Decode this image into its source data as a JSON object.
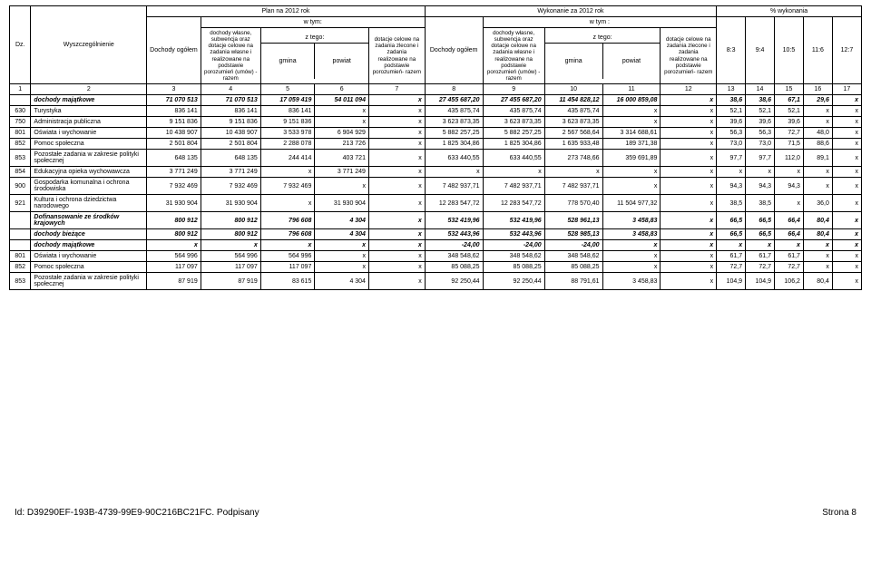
{
  "header": {
    "plan": "Plan na 2012 rok",
    "wtym": "w  tym:",
    "wykonanie": "Wykonanie  za  2012 rok",
    "wtym2": "w tym :",
    "pctWyk": "%  wykonania",
    "dz": "Dz.",
    "wysz": "Wyszczególnienie",
    "dochOg": "Dochody ogółem",
    "dochWlasne": "dochody  własne, subwencja  oraz dotacje celowe na zadania własne i realizowane  na podstawie porozumień (umów) - razem",
    "ztego": "z tego:",
    "gmina": "gmina",
    "powiat": "powiat",
    "dotacje": "dotacje celowe na zadania zlecone i zadania realizowane  na podstawie porozumień- razem",
    "dochOg2": "Dochody ogółem",
    "c83": "8:3",
    "c94": "9:4",
    "c105": "10:5",
    "c116": "11:6",
    "c127": "12:7"
  },
  "numRow": [
    "1",
    "2",
    "3",
    "4",
    "5",
    "6",
    "7",
    "8",
    "9",
    "10",
    "11",
    "12",
    "13",
    "14",
    "15",
    "16",
    "17"
  ],
  "rows": [
    {
      "style": "bold ital",
      "cells": [
        "",
        "dochody majątkowe",
        "71 070 513",
        "71 070 513",
        "17 059 419",
        "54 011 094",
        "x",
        "27 455 687,20",
        "27 455 687,20",
        "11 454 828,12",
        "16 000 859,08",
        "x",
        "38,6",
        "38,6",
        "67,1",
        "29,6",
        "x"
      ]
    },
    {
      "cells": [
        "630",
        "Turystyka",
        "836 141",
        "836 141",
        "836 141",
        "x",
        "x",
        "435 875,74",
        "435 875,74",
        "435 875,74",
        "x",
        "x",
        "52,1",
        "52,1",
        "52,1",
        "x",
        "x"
      ]
    },
    {
      "cells": [
        "750",
        "Administracja  publiczna",
        "9 151 836",
        "9 151 836",
        "9 151 836",
        "x",
        "x",
        "3 623 873,35",
        "3 623 873,35",
        "3 623 873,35",
        "x",
        "x",
        "39,6",
        "39,6",
        "39,6",
        "x",
        "x"
      ]
    },
    {
      "cells": [
        "801",
        "Oświata i wychowanie",
        "10 438 907",
        "10 438 907",
        "3 533 978",
        "6 904 929",
        "x",
        "5 882 257,25",
        "5 882 257,25",
        "2 567 568,64",
        "3 314 688,61",
        "x",
        "56,3",
        "56,3",
        "72,7",
        "48,0",
        "x"
      ]
    },
    {
      "cells": [
        "852",
        "Pomoc społeczna",
        "2 501 804",
        "2 501 804",
        "2 288 078",
        "213 726",
        "x",
        "1 825 304,86",
        "1 825 304,86",
        "1 635 933,48",
        "189 371,38",
        "x",
        "73,0",
        "73,0",
        "71,5",
        "88,6",
        "x"
      ]
    },
    {
      "cells": [
        "853",
        "Pozostałe  zadania w zakresie polityki społecznej",
        "648 135",
        "648 135",
        "244 414",
        "403 721",
        "x",
        "633 440,55",
        "633 440,55",
        "273 748,66",
        "359 691,89",
        "x",
        "97,7",
        "97,7",
        "112,0",
        "89,1",
        "x"
      ]
    },
    {
      "cells": [
        "854",
        "Edukacyjna  opieka wychowawcza",
        "3 771 249",
        "3 771 249",
        "x",
        "3 771 249",
        "x",
        "x",
        "x",
        "x",
        "x",
        "x",
        "x",
        "x",
        "x",
        "x",
        "x"
      ]
    },
    {
      "cells": [
        "900",
        "Gospodarka  komunalna i ochrona środowiska",
        "7 932 469",
        "7 932 469",
        "7 932 469",
        "x",
        "x",
        "7 482 937,71",
        "7 482 937,71",
        "7 482 937,71",
        "x",
        "x",
        "94,3",
        "94,3",
        "94,3",
        "x",
        "x"
      ]
    },
    {
      "cells": [
        "921",
        "Kultura i ochrona  dziedzictwa narodowego",
        "31 930 904",
        "31 930 904",
        "x",
        "31 930 904",
        "x",
        "12 283 547,72",
        "12 283 547,72",
        "778 570,40",
        "11 504 977,32",
        "x",
        "38,5",
        "38,5",
        "x",
        "36,0",
        "x"
      ]
    },
    {
      "style": "bold ital",
      "cells": [
        "",
        "Dofinansowanie  ze środków krajowych",
        "800 912",
        "800 912",
        "796 608",
        "4 304",
        "x",
        "532 419,96",
        "532 419,96",
        "528 961,13",
        "3 458,83",
        "x",
        "66,5",
        "66,5",
        "66,4",
        "80,4",
        "x"
      ]
    },
    {
      "style": "bold ital",
      "cells": [
        "",
        "dochody  bieżące",
        "800 912",
        "800 912",
        "796 608",
        "4 304",
        "x",
        "532 443,96",
        "532 443,96",
        "528 985,13",
        "3 458,83",
        "x",
        "66,5",
        "66,5",
        "66,4",
        "80,4",
        "x"
      ]
    },
    {
      "style": "bold ital",
      "cells": [
        "",
        "dochody  majątkowe",
        "x",
        "x",
        "x",
        "x",
        "x",
        "-24,00",
        "-24,00",
        "-24,00",
        "x",
        "x",
        "x",
        "x",
        "x",
        "x",
        "x"
      ]
    },
    {
      "cells": [
        "801",
        "Oświata i wychowanie",
        "564 996",
        "564 996",
        "564 996",
        "x",
        "x",
        "348 548,62",
        "348 548,62",
        "348 548,62",
        "x",
        "x",
        "61,7",
        "61,7",
        "61,7",
        "x",
        "x"
      ]
    },
    {
      "cells": [
        "852",
        "Pomoc społeczna",
        "117 097",
        "117 097",
        "117 097",
        "x",
        "x",
        "85 088,25",
        "85 088,25",
        "85 088,25",
        "x",
        "x",
        "72,7",
        "72,7",
        "72,7",
        "x",
        "x"
      ]
    },
    {
      "cells": [
        "853",
        "Pozostałe  zadania w zakresie polityki społecznej",
        "87 919",
        "87 919",
        "83 615",
        "4 304",
        "x",
        "92 250,44",
        "92 250,44",
        "88 791,61",
        "3 458,83",
        "x",
        "104,9",
        "104,9",
        "106,2",
        "80,4",
        "x"
      ]
    }
  ],
  "footer": {
    "id": "Id: D39290EF-193B-4739-99E9-90C216BC21FC. Podpisany",
    "page": "Strona 8"
  }
}
